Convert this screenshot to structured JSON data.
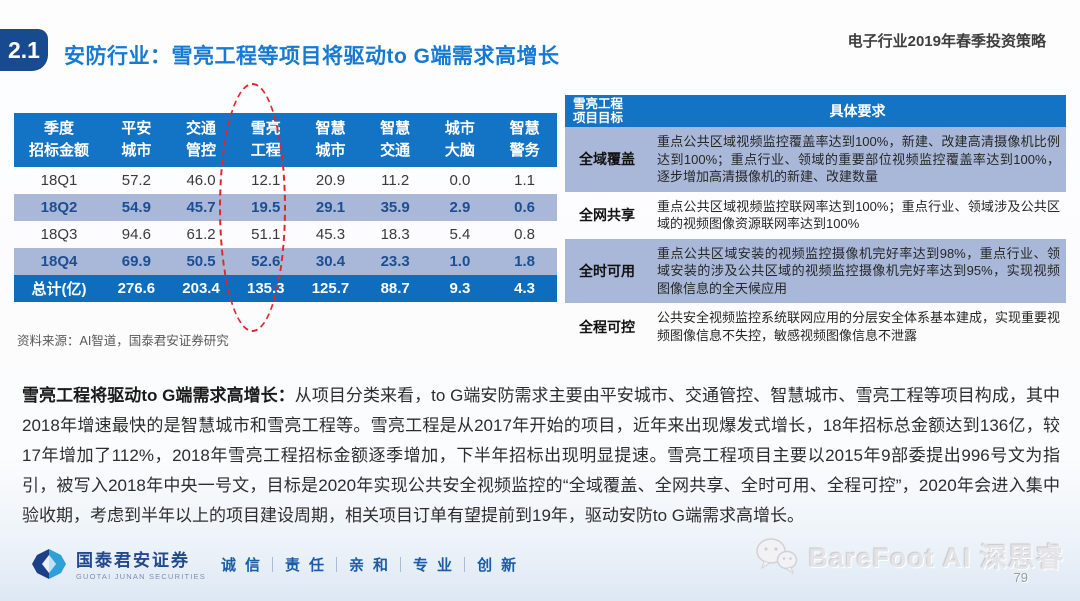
{
  "header": {
    "section_number": "2.1",
    "title": "安防行业：雪亮工程等项目将驱动to G端需求高增长",
    "top_right": "电子行业2019年春季投资策略"
  },
  "bid_table": {
    "col_headers": [
      [
        "季度",
        "招标金额"
      ],
      [
        "平安",
        "城市"
      ],
      [
        "交通",
        "管控"
      ],
      [
        "雪亮",
        "工程"
      ],
      [
        "智慧",
        "城市"
      ],
      [
        "智慧",
        "交通"
      ],
      [
        "城市",
        "大脑"
      ],
      [
        "智慧",
        "警务"
      ]
    ],
    "rows": [
      {
        "label": "18Q1",
        "values": [
          "57.2",
          "46.0",
          "12.1",
          "20.9",
          "11.2",
          "0.0",
          "1.1"
        ],
        "highlight": false
      },
      {
        "label": "18Q2",
        "values": [
          "54.9",
          "45.7",
          "19.5",
          "29.1",
          "35.9",
          "2.9",
          "0.6"
        ],
        "highlight": true
      },
      {
        "label": "18Q3",
        "values": [
          "94.6",
          "61.2",
          "51.1",
          "45.3",
          "18.3",
          "5.4",
          "0.8"
        ],
        "highlight": false
      },
      {
        "label": "18Q4",
        "values": [
          "69.9",
          "50.5",
          "52.6",
          "30.4",
          "23.3",
          "1.0",
          "1.8"
        ],
        "highlight": true
      }
    ],
    "total": {
      "label": "总计(亿)",
      "values": [
        "276.6",
        "203.4",
        "135.3",
        "125.7",
        "88.7",
        "9.3",
        "4.3"
      ]
    }
  },
  "source_note": "资料来源：AI智道，国泰君安证券研究",
  "goal_table": {
    "header": {
      "col1_line1": "雪亮工程",
      "col1_line2": "项目目标",
      "col2": "具体要求"
    },
    "rows": [
      {
        "goal": "全域覆盖",
        "requirement": "重点公共区域视频监控覆盖率达到100%，新建、改建高清摄像机比例达到100%；重点行业、领域的重要部位视频监控覆盖率达到100%，逐步增加高清摄像机的新建、改建数量",
        "highlight": true
      },
      {
        "goal": "全网共享",
        "requirement": "重点公共区域视频监控联网率达到100%；重点行业、领域涉及公共区域的视频图像资源联网率达到100%",
        "highlight": false
      },
      {
        "goal": "全时可用",
        "requirement": "重点公共区域安装的视频监控摄像机完好率达到98%，重点行业、领域安装的涉及公共区域的视频监控摄像机完好率达到95%，实现视频图像信息的全天候应用",
        "highlight": true
      },
      {
        "goal": "全程可控",
        "requirement": "公共安全视频监控系统联网应用的分层安全体系基本建成，实现重要视频图像信息不失控，敏感视频图像信息不泄露",
        "highlight": false
      }
    ]
  },
  "body": {
    "bold_lead": "雪亮工程将驱动to G端需求高增长：",
    "text": "从项目分类来看，to G端安防需求主要由平安城市、交通管控、智慧城市、雪亮工程等项目构成，其中2018年增速最快的是智慧城市和雪亮工程等。雪亮工程是从2017年开始的项目，近年来出现爆发式增长，18年招标总金额达到136亿，较17年增加了112%，2018年雪亮工程招标金额逐季增加，下半年招标出现明显提速。雪亮工程项目主要以2015年9部委提出996号文为指引，被写入2018年中央一号文，目标是2020年实现公共安全视频监控的“全域覆盖、全网共享、全时可用、全程可控”，2020年会进入集中验收期，考虑到半年以上的项目建设周期，相关项目订单有望提前到19年，驱动安防to G端需求高增长。"
  },
  "footer": {
    "logo_cn": "国泰君安证券",
    "logo_en": "GUOTAI JUNAN SECURITIES",
    "motto": [
      "诚信",
      "责任",
      "亲和",
      "专业",
      "创新"
    ],
    "page_number": "79"
  },
  "watermark": {
    "text": "BareFoot AI 深思睿"
  },
  "colors": {
    "header-blue": "#1373c4",
    "total-row-blue": "#0e6ebd",
    "highlight-row": "#a9b8d9",
    "highlight-text": "#1d4e91",
    "title-blue": "#1679d2",
    "badge-navy": "#174a8e",
    "ellipse-red": "#e0262b",
    "motto-blue": "#1b5ca8"
  }
}
